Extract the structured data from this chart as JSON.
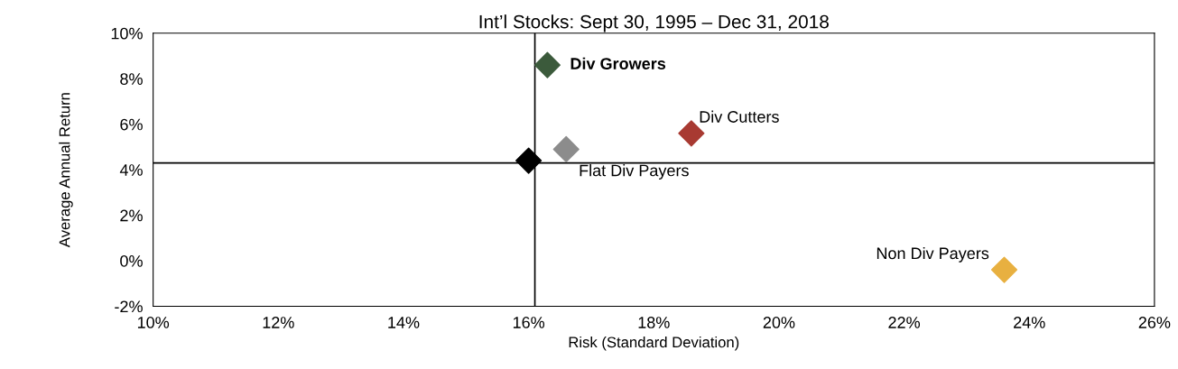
{
  "chart_data": {
    "type": "scatter",
    "title": "Int’l Stocks: Sept 30, 1995 – Dec 31, 2018",
    "xlabel": "Risk (Standard Deviation)",
    "ylabel": "Average Annual Return",
    "series": [
      {
        "name": "Div Growers",
        "color": "#3b5a3b",
        "x": [
          16.3
        ],
        "values": [
          8.6
        ]
      },
      {
        "name": "Flat Div Payers",
        "color": "#8c8c8c",
        "x": [
          16.6
        ],
        "values": [
          4.9
        ]
      },
      {
        "name": "Div Cutters",
        "color": "#a83a32",
        "x": [
          18.6
        ],
        "values": [
          5.6
        ]
      },
      {
        "color": "#000000",
        "x": [
          16.0
        ],
        "values": [
          4.4
        ]
      },
      {
        "name": "Non Div Payers",
        "color": "#e8b040",
        "x": [
          23.6
        ],
        "values": [
          -0.4
        ]
      }
    ],
    "xlim": [
      10,
      26
    ],
    "ylim": [
      -2,
      10
    ],
    "xticks": [
      {
        "value": 10,
        "label": "10%"
      },
      {
        "value": 12,
        "label": "12%"
      },
      {
        "value": 14,
        "label": "14%"
      },
      {
        "value": 16,
        "label": "16%"
      },
      {
        "value": 18,
        "label": "18%"
      },
      {
        "value": 20,
        "label": "20%"
      },
      {
        "value": 22,
        "label": "22%"
      },
      {
        "value": 24,
        "label": "24%"
      },
      {
        "value": 26,
        "label": "26%"
      }
    ],
    "yticks": [
      {
        "value": -2,
        "label": "-2%"
      },
      {
        "value": 0,
        "label": "0%"
      },
      {
        "value": 2,
        "label": "2%"
      },
      {
        "value": 4,
        "label": "4%"
      },
      {
        "value": 6,
        "label": "6%"
      },
      {
        "value": 8,
        "label": "8%"
      },
      {
        "value": 10,
        "label": "10%"
      }
    ],
    "ref_lines": [
      {
        "axis": "x",
        "value": 16.1,
        "color": "#000000"
      },
      {
        "axis": "y",
        "value": 4.3,
        "color": "#000000"
      }
    ],
    "marker": "diamond",
    "grid": false,
    "legend": false
  }
}
